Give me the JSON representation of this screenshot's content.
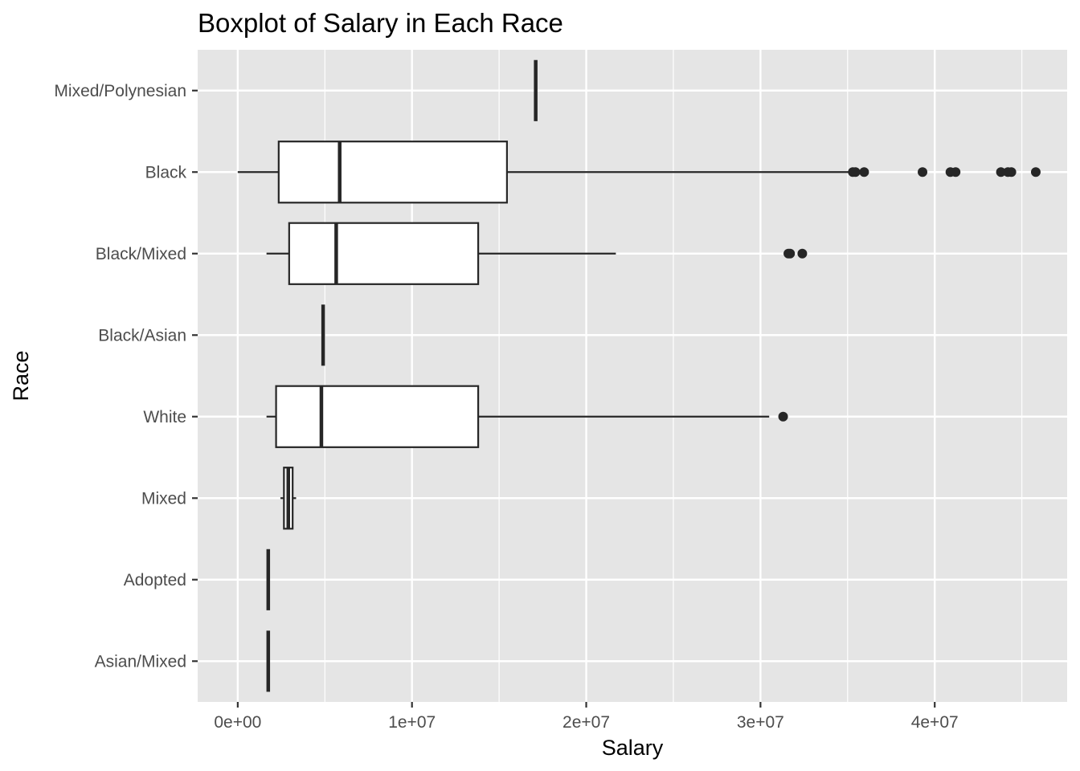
{
  "chart_data": {
    "type": "boxplot",
    "orientation": "horizontal",
    "title": "Boxplot of Salary in Each Race",
    "xlabel": "Salary",
    "ylabel": "Race",
    "xlim": [
      -2300000,
      47600000
    ],
    "x_ticks": [
      0,
      10000000,
      20000000,
      30000000,
      40000000
    ],
    "x_tick_labels": [
      "0e+00",
      "1e+07",
      "2e+07",
      "3e+07",
      "4e+07"
    ],
    "grid": true,
    "legend": "none",
    "categories": [
      "Mixed/Polynesian",
      "Black",
      "Black/Mixed",
      "Black/Asian",
      "White",
      "Mixed",
      "Adopted",
      "Asian/Mixed"
    ],
    "boxes": [
      {
        "category": "Mixed/Polynesian",
        "whisker_low": 17100000,
        "q1": 17100000,
        "median": 17100000,
        "q3": 17100000,
        "whisker_high": 17100000,
        "outliers": []
      },
      {
        "category": "Black",
        "whisker_low": 0,
        "q1": 2350000,
        "median": 5850000,
        "q3": 15450000,
        "whisker_high": 35050000,
        "outliers": [
          35300000,
          35450000,
          35950000,
          39300000,
          40900000,
          41200000,
          43800000,
          44200000,
          44400000,
          45800000
        ]
      },
      {
        "category": "Black/Mixed",
        "whisker_low": 1650000,
        "q1": 2950000,
        "median": 5650000,
        "q3": 13800000,
        "whisker_high": 21700000,
        "outliers": [
          31600000,
          31700000,
          32400000
        ]
      },
      {
        "category": "Black/Asian",
        "whisker_low": 4900000,
        "q1": 4900000,
        "median": 4900000,
        "q3": 4900000,
        "whisker_high": 4900000,
        "outliers": []
      },
      {
        "category": "White",
        "whisker_low": 1650000,
        "q1": 2200000,
        "median": 4800000,
        "q3": 13800000,
        "whisker_high": 30500000,
        "outliers": [
          31300000
        ]
      },
      {
        "category": "Mixed",
        "whisker_low": 2450000,
        "q1": 2650000,
        "median": 2900000,
        "q3": 3150000,
        "whisker_high": 3350000,
        "outliers": []
      },
      {
        "category": "Adopted",
        "whisker_low": 1750000,
        "q1": 1750000,
        "median": 1750000,
        "q3": 1750000,
        "whisker_high": 1750000,
        "outliers": []
      },
      {
        "category": "Asian/Mixed",
        "whisker_low": 1750000,
        "q1": 1750000,
        "median": 1750000,
        "q3": 1750000,
        "whisker_high": 1750000,
        "outliers": []
      }
    ]
  },
  "colors": {
    "panel_background": "#e5e5e5",
    "grid": "#ffffff",
    "box_fill": "#ffffff",
    "box_stroke": "#262626",
    "outlier": "#262626",
    "tick_text": "#4d4d4d",
    "tick_mark": "#333333"
  }
}
